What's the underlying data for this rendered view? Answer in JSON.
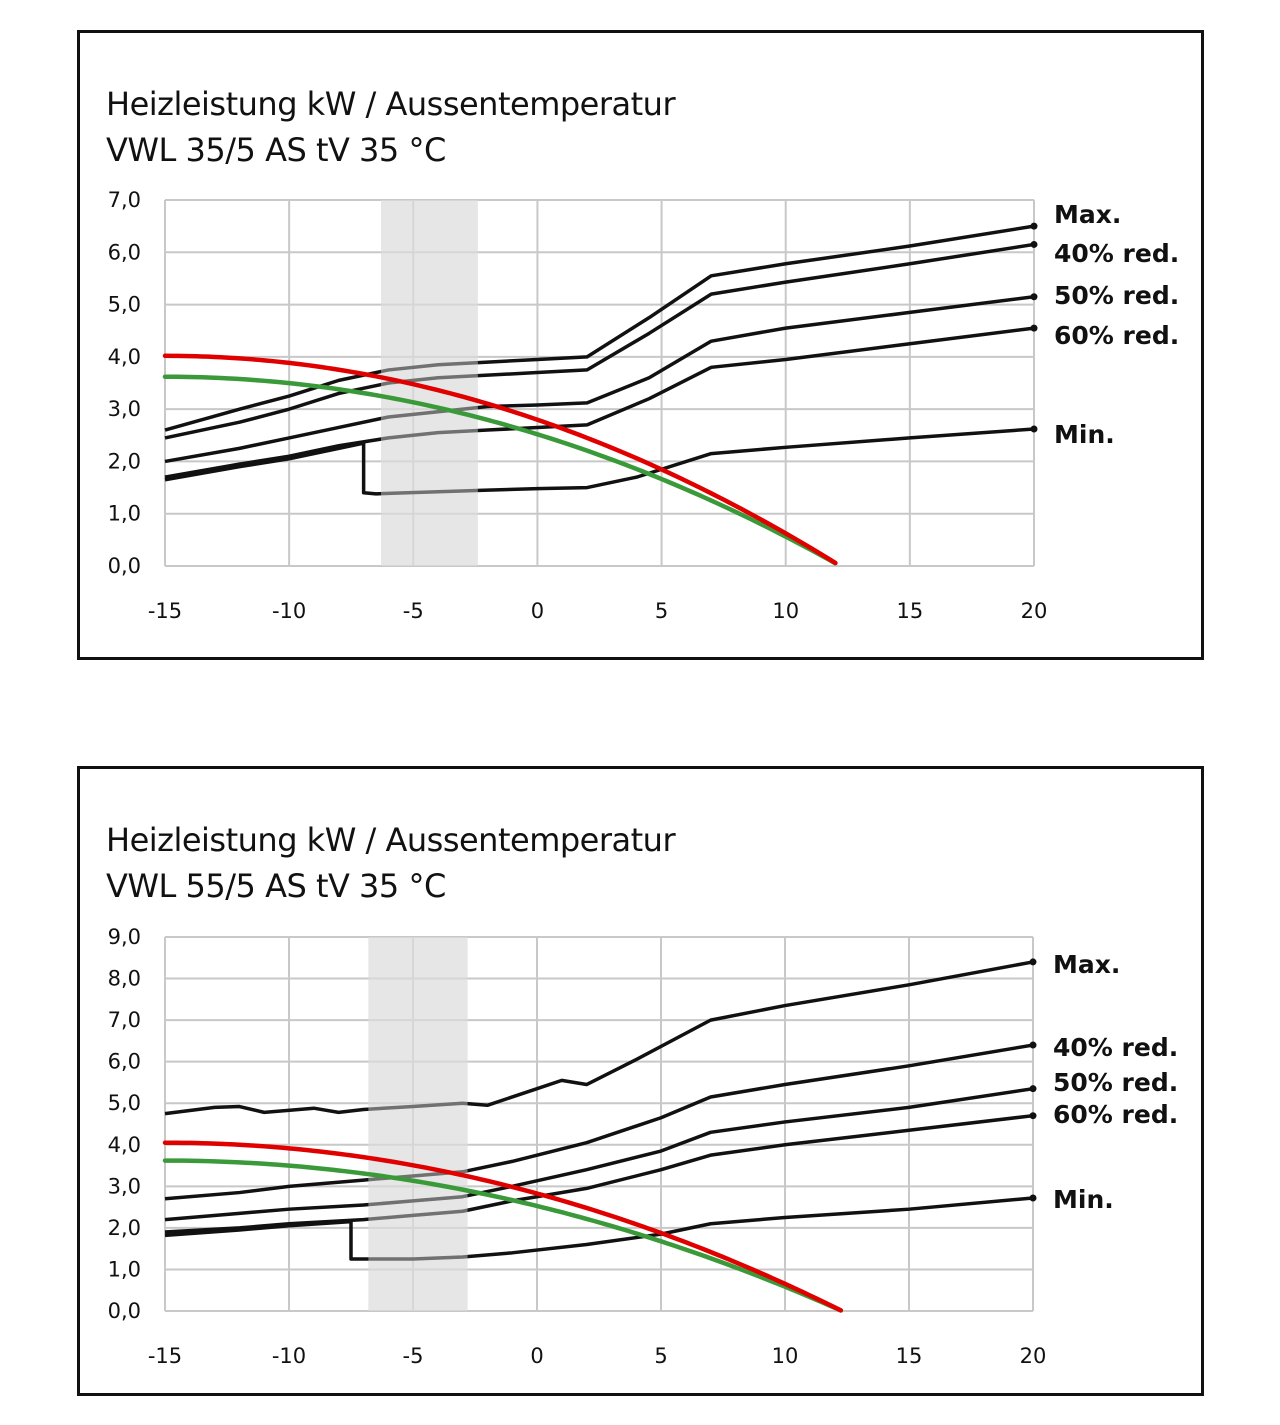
{
  "chart_data": [
    {
      "type": "line",
      "title": "Heizleistung kW / Aussentemperatur",
      "subtitle": "VWL 35/5 AS tV 35 °C",
      "xlabel": "",
      "ylabel": "",
      "xlim": [
        -15,
        20
      ],
      "ylim": [
        0,
        7
      ],
      "xticks": [
        "-15",
        "-10",
        "-5",
        "0",
        "5",
        "10",
        "15",
        "20"
      ],
      "yticks": [
        "0,0",
        "1,0",
        "2,0",
        "3,0",
        "4,0",
        "5,0",
        "6,0",
        "7,0"
      ],
      "grid": true,
      "shaded_band": [
        -6.3,
        -2.4
      ],
      "colors": {
        "curves": "#111111",
        "red": "#e00000",
        "green": "#3a9a3a",
        "band": "#e6e6e6"
      },
      "series": [
        {
          "name": "Max.",
          "points": [
            [
              -15,
              2.6
            ],
            [
              -12,
              3.0
            ],
            [
              -10,
              3.25
            ],
            [
              -8,
              3.55
            ],
            [
              -6,
              3.75
            ],
            [
              -4,
              3.85
            ],
            [
              -2,
              3.9
            ],
            [
              0,
              3.95
            ],
            [
              2,
              4.0
            ],
            [
              4.5,
              4.75
            ],
            [
              7,
              5.55
            ],
            [
              10,
              5.78
            ],
            [
              15,
              6.12
            ],
            [
              20,
              6.5
            ]
          ]
        },
        {
          "name": "40% red.",
          "points": [
            [
              -15,
              2.45
            ],
            [
              -12,
              2.75
            ],
            [
              -10,
              3.0
            ],
            [
              -8,
              3.3
            ],
            [
              -6,
              3.5
            ],
            [
              -4,
              3.6
            ],
            [
              -2,
              3.65
            ],
            [
              0,
              3.7
            ],
            [
              2,
              3.75
            ],
            [
              4.5,
              4.45
            ],
            [
              7,
              5.2
            ],
            [
              10,
              5.43
            ],
            [
              15,
              5.78
            ],
            [
              20,
              6.15
            ]
          ]
        },
        {
          "name": "50% red.",
          "points": [
            [
              -15,
              2.0
            ],
            [
              -12,
              2.25
            ],
            [
              -10,
              2.45
            ],
            [
              -8,
              2.65
            ],
            [
              -6,
              2.85
            ],
            [
              -4,
              2.95
            ],
            [
              -2,
              3.05
            ],
            [
              0,
              3.08
            ],
            [
              2,
              3.12
            ],
            [
              4.5,
              3.6
            ],
            [
              7,
              4.3
            ],
            [
              10,
              4.55
            ],
            [
              15,
              4.85
            ],
            [
              20,
              5.15
            ]
          ]
        },
        {
          "name": "60% red.",
          "points": [
            [
              -15,
              1.7
            ],
            [
              -12,
              1.95
            ],
            [
              -10,
              2.1
            ],
            [
              -8,
              2.3
            ],
            [
              -6,
              2.45
            ],
            [
              -4,
              2.55
            ],
            [
              -2,
              2.6
            ],
            [
              0,
              2.65
            ],
            [
              2,
              2.7
            ],
            [
              4.5,
              3.2
            ],
            [
              7,
              3.8
            ],
            [
              10,
              3.95
            ],
            [
              15,
              4.25
            ],
            [
              20,
              4.55
            ]
          ]
        },
        {
          "name": "Min.",
          "points": [
            [
              -15,
              1.65
            ],
            [
              -12,
              1.9
            ],
            [
              -10,
              2.05
            ],
            [
              -7,
              2.35
            ],
            [
              -7,
              1.4
            ],
            [
              -6.5,
              1.38
            ],
            [
              -4,
              1.42
            ],
            [
              -2,
              1.45
            ],
            [
              0,
              1.48
            ],
            [
              2,
              1.5
            ],
            [
              4,
              1.7
            ],
            [
              7,
              2.15
            ],
            [
              10,
              2.27
            ],
            [
              15,
              2.45
            ],
            [
              20,
              2.62
            ]
          ]
        }
      ],
      "red_curve": {
        "peak": 4.02,
        "x_zero": 12.2
      },
      "green_curve": {
        "peak": 3.62,
        "x_zero": 12.2
      }
    },
    {
      "type": "line",
      "title": "Heizleistung kW / Aussentemperatur",
      "subtitle": "VWL 55/5 AS tV 35 °C",
      "xlabel": "",
      "ylabel": "",
      "xlim": [
        -15,
        20
      ],
      "ylim": [
        0,
        9
      ],
      "xticks": [
        "-15",
        "-10",
        "-5",
        "0",
        "5",
        "10",
        "15",
        "20"
      ],
      "yticks": [
        "0,0",
        "1,0",
        "2,0",
        "3,0",
        "4,0",
        "5,0",
        "6,0",
        "7,0",
        "8,0",
        "9,0"
      ],
      "grid": true,
      "shaded_band": [
        -6.8,
        -2.8
      ],
      "colors": {
        "curves": "#111111",
        "red": "#e00000",
        "green": "#3a9a3a",
        "band": "#e6e6e6"
      },
      "series": [
        {
          "name": "Max.",
          "points": [
            [
              -15,
              4.75
            ],
            [
              -13,
              4.9
            ],
            [
              -12,
              4.92
            ],
            [
              -11,
              4.78
            ],
            [
              -9,
              4.88
            ],
            [
              -8,
              4.78
            ],
            [
              -7,
              4.85
            ],
            [
              -5,
              4.92
            ],
            [
              -3,
              5.0
            ],
            [
              -2,
              4.95
            ],
            [
              0,
              5.35
            ],
            [
              1,
              5.55
            ],
            [
              2,
              5.45
            ],
            [
              4,
              6.05
            ],
            [
              7,
              7.0
            ],
            [
              10,
              7.35
            ],
            [
              15,
              7.85
            ],
            [
              20,
              8.4
            ]
          ]
        },
        {
          "name": "40% red.",
          "points": [
            [
              -15,
              2.7
            ],
            [
              -12,
              2.85
            ],
            [
              -10,
              3.0
            ],
            [
              -7,
              3.15
            ],
            [
              -5,
              3.25
            ],
            [
              -3,
              3.35
            ],
            [
              -1,
              3.6
            ],
            [
              2,
              4.05
            ],
            [
              5,
              4.65
            ],
            [
              7,
              5.15
            ],
            [
              10,
              5.45
            ],
            [
              15,
              5.9
            ],
            [
              20,
              6.4
            ]
          ]
        },
        {
          "name": "50% red.",
          "points": [
            [
              -15,
              2.2
            ],
            [
              -12,
              2.35
            ],
            [
              -10,
              2.45
            ],
            [
              -7,
              2.55
            ],
            [
              -5,
              2.65
            ],
            [
              -3,
              2.75
            ],
            [
              -1,
              3.0
            ],
            [
              2,
              3.4
            ],
            [
              5,
              3.85
            ],
            [
              7,
              4.3
            ],
            [
              10,
              4.55
            ],
            [
              15,
              4.9
            ],
            [
              20,
              5.35
            ]
          ]
        },
        {
          "name": "60% red.",
          "points": [
            [
              -15,
              1.9
            ],
            [
              -12,
              2.0
            ],
            [
              -10,
              2.1
            ],
            [
              -7,
              2.2
            ],
            [
              -5,
              2.3
            ],
            [
              -3,
              2.4
            ],
            [
              -1,
              2.65
            ],
            [
              2,
              2.95
            ],
            [
              5,
              3.4
            ],
            [
              7,
              3.75
            ],
            [
              10,
              4.0
            ],
            [
              15,
              4.35
            ],
            [
              20,
              4.7
            ]
          ]
        },
        {
          "name": "Min.",
          "points": [
            [
              -15,
              1.82
            ],
            [
              -12,
              1.95
            ],
            [
              -10,
              2.05
            ],
            [
              -7.5,
              2.15
            ],
            [
              -7.5,
              1.25
            ],
            [
              -6.5,
              1.25
            ],
            [
              -5,
              1.25
            ],
            [
              -3,
              1.3
            ],
            [
              -1,
              1.4
            ],
            [
              2,
              1.6
            ],
            [
              5,
              1.85
            ],
            [
              7,
              2.1
            ],
            [
              10,
              2.25
            ],
            [
              15,
              2.45
            ],
            [
              20,
              2.72
            ]
          ]
        }
      ],
      "red_curve": {
        "peak": 4.05,
        "x_zero": 12.3
      },
      "green_curve": {
        "peak": 3.62,
        "x_zero": 12.3
      }
    }
  ]
}
